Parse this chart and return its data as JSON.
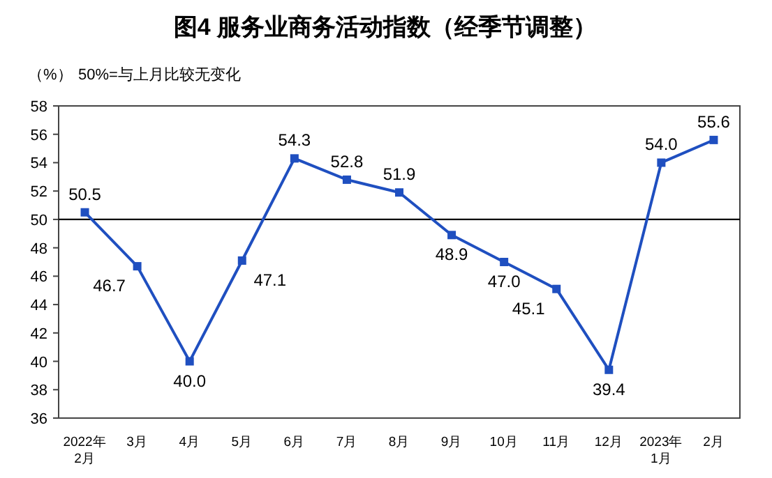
{
  "chart_data": {
    "type": "line",
    "title": "图4 服务业商务活动指数（经季节调整）",
    "ylabel": "（%）",
    "annotations": [
      "50%=与上月比较无变化"
    ],
    "categories": [
      "2022年\n2月",
      "3月",
      "4月",
      "5月",
      "6月",
      "7月",
      "8月",
      "9月",
      "10月",
      "11月",
      "12月",
      "2023年\n1月",
      "2月"
    ],
    "series": [
      {
        "color": "#1f4fc0",
        "values": [
          50.5,
          46.7,
          40.0,
          47.1,
          54.3,
          52.8,
          51.9,
          48.9,
          47.0,
          45.1,
          39.4,
          54.0,
          55.6
        ],
        "value_labels": [
          "50.5",
          "46.7",
          "40.0",
          "47.1",
          "54.3",
          "52.8",
          "51.9",
          "48.9",
          "47.0",
          "45.1",
          "39.4",
          "54.0",
          "55.6"
        ]
      }
    ],
    "ylim": [
      36,
      58
    ],
    "yticks": [
      36,
      38,
      40,
      42,
      44,
      46,
      48,
      50,
      52,
      54,
      56,
      58
    ],
    "ref_lines": [
      {
        "axis": "y",
        "value": 50,
        "color": "#000000"
      }
    ],
    "marker": "square",
    "line_style": "solid",
    "grid": false
  }
}
